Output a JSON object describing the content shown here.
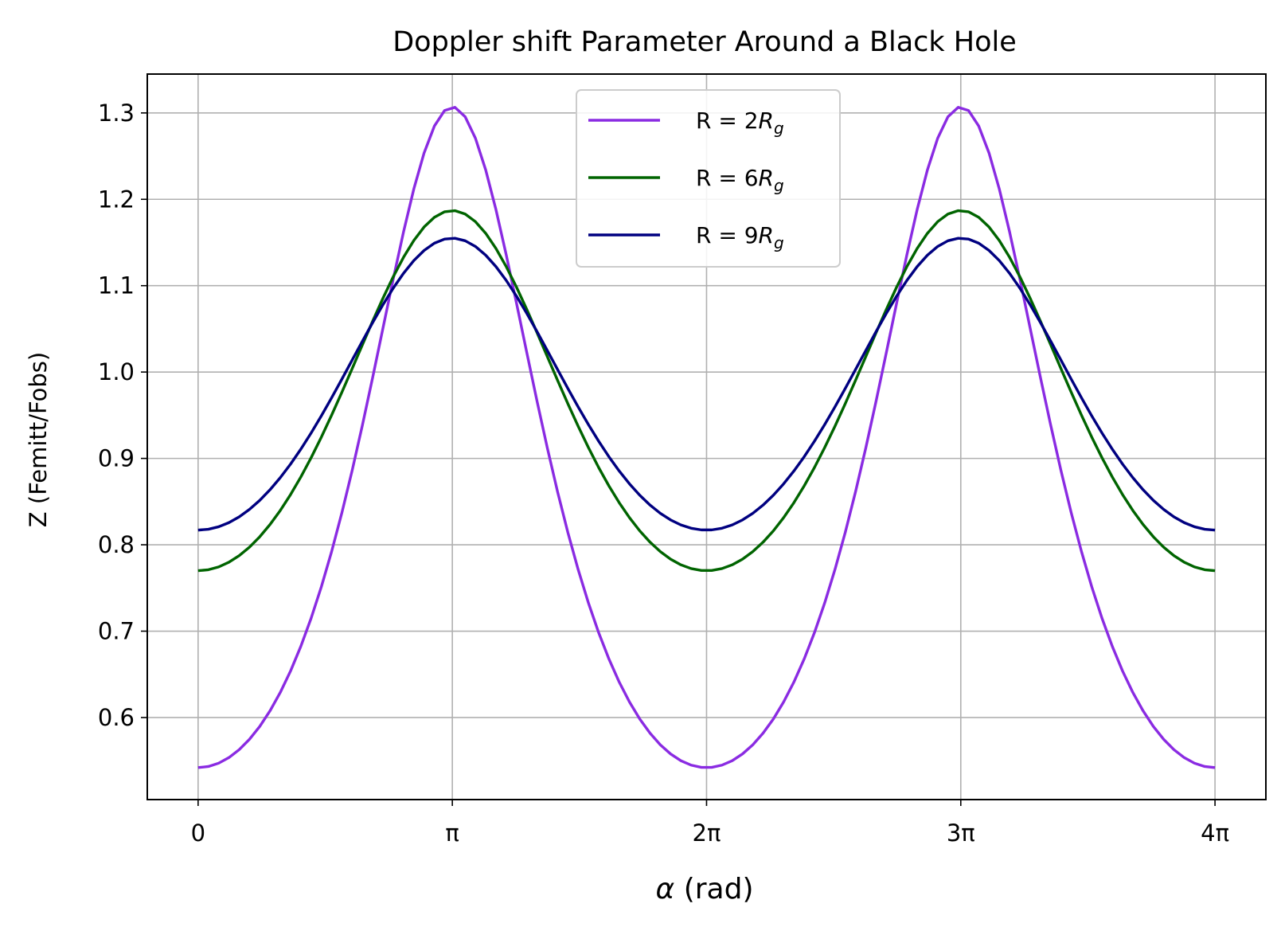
{
  "chart_data": {
    "type": "line",
    "title": "Doppler shift Parameter Around a Black Hole",
    "xlabel_symbol": "α",
    "xlabel_unit": "(rad)",
    "ylabel": "Z (Femitt/Fobs)",
    "xlim": [
      -0.628,
      13.195
    ],
    "ylim": [
      0.505,
      1.345
    ],
    "x_ticks": [
      {
        "value": 0,
        "label": "0"
      },
      {
        "value": 3.14159,
        "label": "π"
      },
      {
        "value": 6.28319,
        "label": "2π"
      },
      {
        "value": 9.42478,
        "label": "3π"
      },
      {
        "value": 12.56637,
        "label": "4π"
      }
    ],
    "y_ticks": [
      "0.6",
      "0.7",
      "0.8",
      "0.9",
      "1.0",
      "1.1",
      "1.2",
      "1.3"
    ],
    "grid": true,
    "legend_position": "top-center",
    "x_range": [
      0,
      12.56637
    ],
    "series": [
      {
        "name": "R = 2",
        "subscript_symbol": "R",
        "subscript": "g",
        "color": "#8a2be2",
        "minimum": 0.542,
        "maximum": 1.307,
        "minimum_at": [
          0,
          6.28319,
          12.56637
        ],
        "maximum_at": [
          3.14159,
          9.42478
        ]
      },
      {
        "name": "R = 6",
        "subscript_symbol": "R",
        "subscript": "g",
        "color": "#006400",
        "minimum": 0.77,
        "maximum": 1.187,
        "minimum_at": [
          0,
          6.28319,
          12.56637
        ],
        "maximum_at": [
          3.14159,
          9.42478
        ]
      },
      {
        "name": "R = 9",
        "subscript_symbol": "R",
        "subscript": "g",
        "color": "#000080",
        "minimum": 0.817,
        "maximum": 1.155,
        "minimum_at": [
          0,
          6.28319,
          12.56637
        ],
        "maximum_at": [
          3.14159,
          9.42478
        ]
      }
    ]
  }
}
